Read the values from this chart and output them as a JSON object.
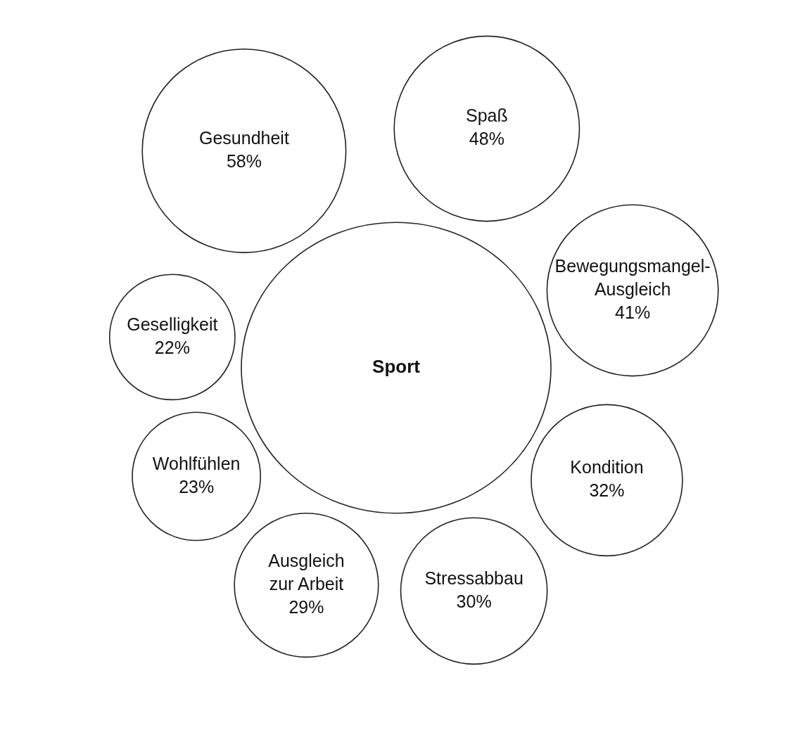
{
  "chart_data": {
    "type": "other",
    "title": "Sport",
    "categories": [
      "Gesundheit",
      "Spaß",
      "Bewegungsmangel-\nAusgleich",
      "Kondition",
      "Stressabbau",
      "Ausgleich\nzur Arbeit",
      "Wohlfühlen",
      "Geselligkeit"
    ],
    "values": [
      58,
      48,
      41,
      32,
      30,
      29,
      23,
      22
    ],
    "value_labels": [
      "58%",
      "48%",
      "41%",
      "32%",
      "30%",
      "29%",
      "23%",
      "22%"
    ]
  }
}
